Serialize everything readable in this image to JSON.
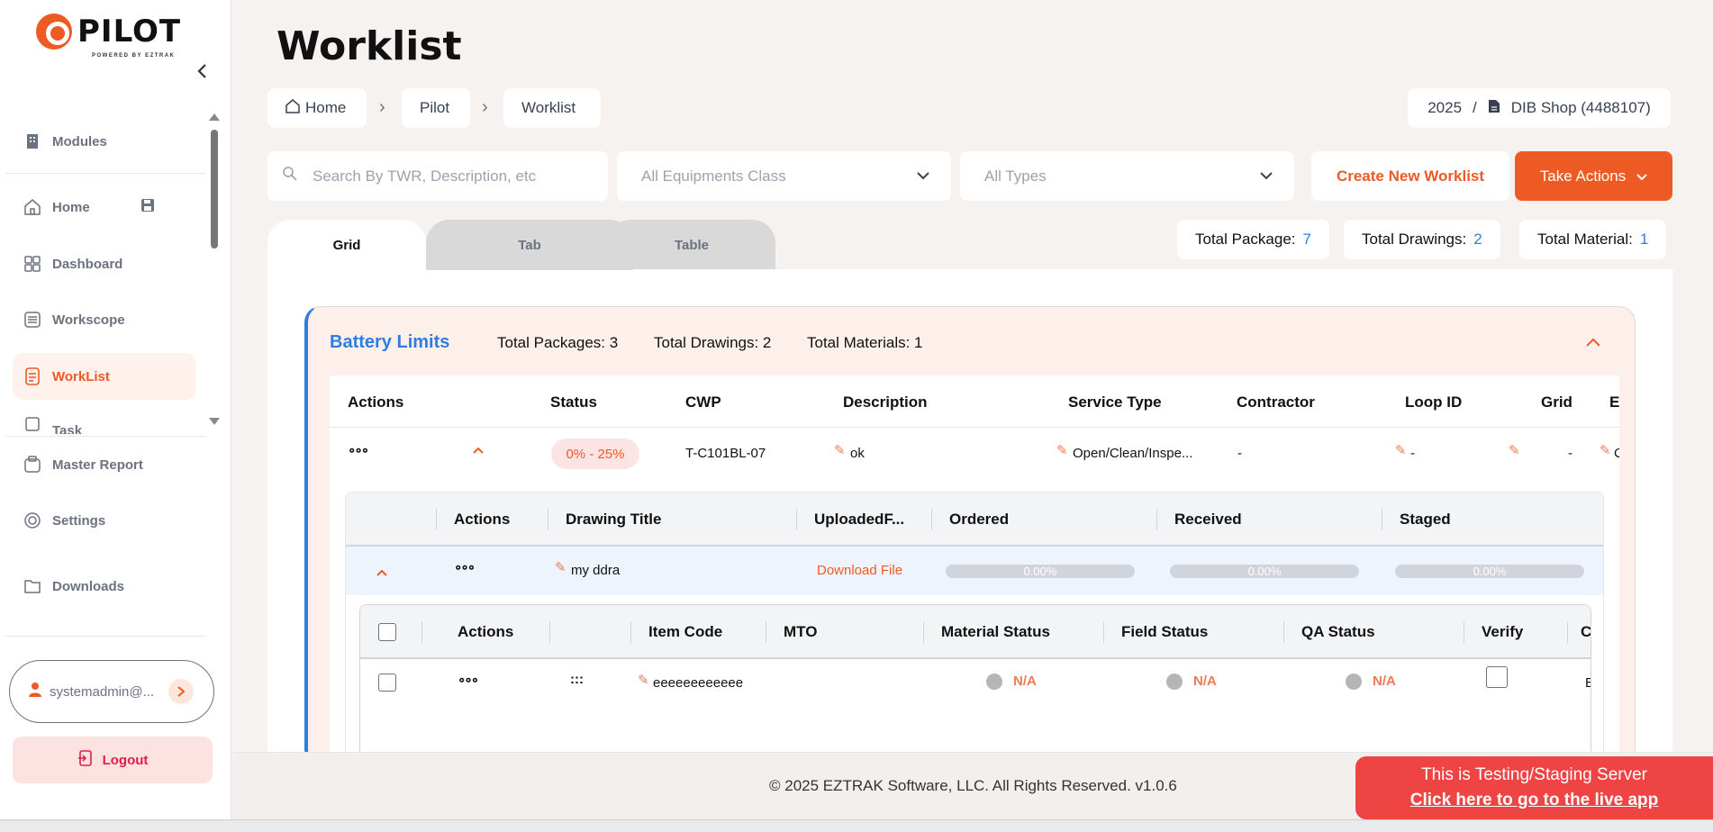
{
  "brand": {
    "name": "PILOT",
    "tagline": "POWERED BY EZTRAK"
  },
  "sidebar": {
    "items": [
      {
        "label": "Modules",
        "icon": "building-icon"
      },
      {
        "label": "Home",
        "icon": "home-icon"
      },
      {
        "label": "Dashboard",
        "icon": "grid-icon"
      },
      {
        "label": "Workscope",
        "icon": "list-icon"
      },
      {
        "label": "WorkList",
        "icon": "document-icon",
        "active": true
      },
      {
        "label": "Task",
        "icon": "task-icon"
      },
      {
        "label": "Master Report",
        "icon": "report-icon"
      },
      {
        "label": "Settings",
        "icon": "gear-icon"
      },
      {
        "label": "Downloads",
        "icon": "folder-icon"
      }
    ],
    "user": "systemadmin@...",
    "logout": "Logout"
  },
  "page": {
    "title": "Worklist"
  },
  "breadcrumb": [
    "Home",
    "Pilot",
    "Worklist"
  ],
  "context": {
    "year": "2025",
    "separator": "/",
    "shop": "DIB Shop (4488107)"
  },
  "filters": {
    "search_placeholder": "Search By TWR, Description, etc",
    "equipment_class": "All Equipments Class",
    "types": "All Types"
  },
  "actions": {
    "create": "Create New Worklist",
    "take": "Take Actions"
  },
  "tabs": [
    "Grid",
    "Tab",
    "Table"
  ],
  "totals": {
    "package_label": "Total Package:",
    "package": "7",
    "drawings_label": "Total Drawings:",
    "drawings": "2",
    "material_label": "Total Material:",
    "material": "1"
  },
  "group": {
    "title": "Battery Limits",
    "packages": "Total Packages: 3",
    "drawings": "Total Drawings: 2",
    "materials": "Total Materials: 1"
  },
  "package_table": {
    "columns": [
      "Actions",
      "Status",
      "CWP",
      "Description",
      "Service Type",
      "Contractor",
      "Loop ID",
      "Grid",
      "E"
    ],
    "row": {
      "actions": "∘∘∘",
      "status": "0% - 25%",
      "cwp": "T-C101BL-07",
      "description": "ok",
      "service_type": "Open/Clean/Inspe...",
      "contractor": "-",
      "loop_id": "-",
      "grid": "-",
      "extra": "C"
    }
  },
  "drawing_table": {
    "columns": [
      "Actions",
      "Drawing Title",
      "UploadedF...",
      "Ordered",
      "Received",
      "Staged"
    ],
    "row": {
      "actions": "∘∘∘",
      "title": "my ddra",
      "file": "Download File",
      "ordered": "0.00%",
      "received": "0.00%",
      "staged": "0.00%",
      "progress": {
        "ordered": 0,
        "received": 0,
        "staged": 0
      }
    }
  },
  "material_table": {
    "columns": [
      "Actions",
      "Item Code",
      "MTO",
      "Material Status",
      "Field Status",
      "QA Status",
      "Verify",
      "C"
    ],
    "row": {
      "actions": "∘∘∘",
      "drag": ":::",
      "item_code": "eeeeeeeeeeee",
      "material_status": "N/A",
      "field_status": "N/A",
      "qa_status": "N/A",
      "extra": "B"
    }
  },
  "footer": {
    "copyright": "© 2025 EZTRAK Software, LLC. All Rights Reserved. v1.0.6"
  },
  "staging": {
    "line1": "This is Testing/Staging Server",
    "link": "Click here to go to the live app"
  },
  "colors": {
    "accent": "#ee5a24",
    "blue": "#2f7de1",
    "staging": "#ef4444"
  }
}
